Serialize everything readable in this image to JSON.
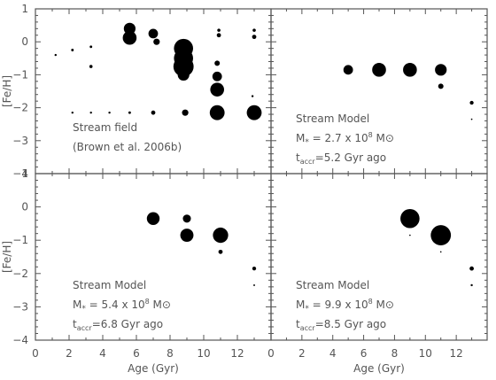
{
  "chart_data": {
    "type": "scatter",
    "x_range": [
      0,
      14
    ],
    "y_range": [
      -4,
      1
    ],
    "x_ticks": [
      "0",
      "2",
      "4",
      "6",
      "8",
      "10",
      "12"
    ],
    "y_ticks_top": [
      "1",
      "0",
      "−1",
      "−2",
      "−3",
      "−4"
    ],
    "y_ticks_bottom": [
      "1",
      "0",
      "−1",
      "−2",
      "−3",
      "−4"
    ],
    "xlabel": "Age (Gyr)",
    "ylabel": "[Fe/H]",
    "panels": [
      {
        "lines": [
          "Stream field",
          "(Brown et al. 2006b)"
        ],
        "points": [
          {
            "x": 5.6,
            "y": 0.4,
            "s": 0.55
          },
          {
            "x": 5.6,
            "y": 0.12,
            "s": 0.65
          },
          {
            "x": 7.0,
            "y": 0.25,
            "s": 0.45
          },
          {
            "x": 7.2,
            "y": 0.0,
            "s": 0.3
          },
          {
            "x": 8.8,
            "y": -0.2,
            "s": 0.9
          },
          {
            "x": 8.8,
            "y": -0.5,
            "s": 0.9
          },
          {
            "x": 8.8,
            "y": -0.75,
            "s": 0.95
          },
          {
            "x": 8.8,
            "y": -1.0,
            "s": 0.55
          },
          {
            "x": 10.8,
            "y": -1.05,
            "s": 0.45
          },
          {
            "x": 10.8,
            "y": -1.45,
            "s": 0.65
          },
          {
            "x": 10.8,
            "y": -2.15,
            "s": 0.7
          },
          {
            "x": 13.0,
            "y": -2.15,
            "s": 0.7
          },
          {
            "x": 8.9,
            "y": -2.15,
            "s": 0.3
          },
          {
            "x": 7.0,
            "y": -2.15,
            "s": 0.2
          },
          {
            "x": 10.8,
            "y": -0.65,
            "s": 0.25
          },
          {
            "x": 10.9,
            "y": 0.35,
            "s": 0.15
          },
          {
            "x": 10.9,
            "y": 0.2,
            "s": 0.2
          },
          {
            "x": 13.0,
            "y": 0.35,
            "s": 0.15
          },
          {
            "x": 13.0,
            "y": 0.15,
            "s": 0.2
          },
          {
            "x": 3.3,
            "y": -0.75,
            "s": 0.15
          },
          {
            "x": 2.2,
            "y": -0.25,
            "s": 0.12
          },
          {
            "x": 1.2,
            "y": -0.4,
            "s": 0.1
          },
          {
            "x": 3.3,
            "y": -0.15,
            "s": 0.12
          },
          {
            "x": 2.2,
            "y": -2.15,
            "s": 0.1
          },
          {
            "x": 3.3,
            "y": -2.15,
            "s": 0.1
          },
          {
            "x": 4.4,
            "y": -2.15,
            "s": 0.1
          },
          {
            "x": 5.6,
            "y": -2.15,
            "s": 0.12
          },
          {
            "x": 12.9,
            "y": -1.65,
            "s": 0.1
          }
        ]
      },
      {
        "lines": [
          "Stream Model",
          "M* = 2.7 x 10^8 M⊙",
          "t_accr=5.2 Gyr ago"
        ],
        "points": [
          {
            "x": 5.0,
            "y": -0.85,
            "s": 0.45
          },
          {
            "x": 7.0,
            "y": -0.85,
            "s": 0.65
          },
          {
            "x": 9.0,
            "y": -0.85,
            "s": 0.65
          },
          {
            "x": 11.0,
            "y": -0.85,
            "s": 0.55
          },
          {
            "x": 11.0,
            "y": -1.35,
            "s": 0.25
          },
          {
            "x": 13.0,
            "y": -1.85,
            "s": 0.18
          },
          {
            "x": 13.0,
            "y": -2.35,
            "s": 0.07
          }
        ]
      },
      {
        "lines": [
          "Stream Model",
          "M* = 5.4 x 10^8 M⊙",
          "t_accr=6.8 Gyr ago"
        ],
        "points": [
          {
            "x": 7.0,
            "y": -0.35,
            "s": 0.6
          },
          {
            "x": 9.0,
            "y": -0.35,
            "s": 0.38
          },
          {
            "x": 9.0,
            "y": -0.85,
            "s": 0.62
          },
          {
            "x": 11.0,
            "y": -0.85,
            "s": 0.72
          },
          {
            "x": 11.0,
            "y": -1.35,
            "s": 0.2
          },
          {
            "x": 13.0,
            "y": -1.85,
            "s": 0.18
          },
          {
            "x": 13.0,
            "y": -2.35,
            "s": 0.08
          }
        ]
      },
      {
        "lines": [
          "Stream Model",
          "M* = 9.9 x 10^8 M⊙",
          "t_accr=8.5 Gyr ago"
        ],
        "points": [
          {
            "x": 9.0,
            "y": -0.35,
            "s": 0.9
          },
          {
            "x": 11.0,
            "y": -0.85,
            "s": 0.95
          },
          {
            "x": 9.0,
            "y": -0.85,
            "s": 0.07
          },
          {
            "x": 11.0,
            "y": -1.35,
            "s": 0.05
          },
          {
            "x": 13.0,
            "y": -1.85,
            "s": 0.2
          },
          {
            "x": 13.0,
            "y": -2.35,
            "s": 0.1
          }
        ]
      }
    ]
  }
}
